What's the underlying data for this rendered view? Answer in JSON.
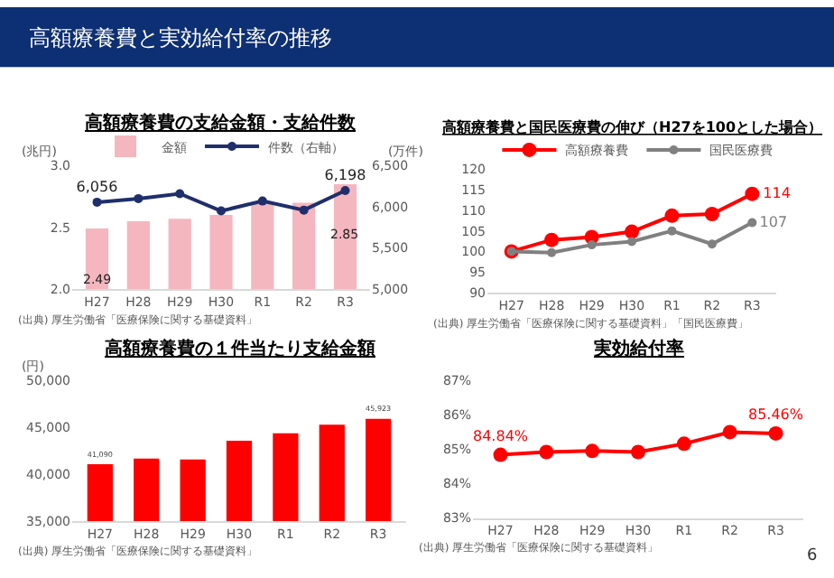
{
  "chart_data": [
    {
      "type": "other",
      "title": "高額療養費と実効給付率の推移",
      "annotations": [
        "6"
      ]
    },
    {
      "type": "bar",
      "title": "高額療養費の支給金額・支給件数",
      "ylabel": "(兆円)",
      "y2label": "(万件)",
      "categories": [
        "H27",
        "H28",
        "H29",
        "H30",
        "R1",
        "R2",
        "R3"
      ],
      "series": [
        {
          "name": "金額",
          "type": "bar",
          "color": "#f4b6bf",
          "values": [
            2.49,
            2.55,
            2.57,
            2.6,
            2.7,
            2.7,
            2.85
          ],
          "value_labels": [
            "2.49",
            null,
            null,
            null,
            null,
            null,
            "2.85"
          ]
        },
        {
          "name": "件数（右軸）",
          "type": "line",
          "axis": "y2",
          "color": "#1f2f6b",
          "values": [
            6056,
            6100,
            6160,
            5950,
            6070,
            5960,
            6198
          ],
          "value_labels": [
            "6,056",
            null,
            null,
            null,
            null,
            null,
            "6,198"
          ]
        }
      ],
      "ylim": [
        2,
        3
      ],
      "yticks": [
        {
          "value": 2,
          "label": "2.0"
        },
        2.5,
        {
          "value": 3,
          "label": "3.0"
        }
      ],
      "y2lim": [
        5000,
        6500
      ],
      "y2ticks": [
        {
          "value": 5000,
          "label": "5,000"
        },
        {
          "value": 5500,
          "label": "5,500"
        },
        {
          "value": 6000,
          "label": "6,000"
        },
        {
          "value": 6500,
          "label": "6,500"
        }
      ],
      "marker": "circle",
      "legend": "top",
      "annotations": [
        "(出典) 厚生労働省「医療保険に関する基礎資料」"
      ]
    },
    {
      "type": "line",
      "title": "高額療養費と国民医療費の伸び（H27を100とした場合）",
      "categories": [
        "H27",
        "H28",
        "H29",
        "H30",
        "R1",
        "R2",
        "R3"
      ],
      "series": [
        {
          "name": "高額療養費",
          "color": "#ff0000",
          "values": [
            100,
            102.8,
            103.5,
            104.8,
            108.7,
            109.1,
            114
          ],
          "value_labels": [
            null,
            null,
            null,
            null,
            null,
            null,
            "114"
          ]
        },
        {
          "name": "国民医療費",
          "color": "#808080",
          "values": [
            100,
            99.7,
            101.6,
            102.4,
            105,
            101.8,
            107
          ],
          "value_labels": [
            null,
            null,
            null,
            null,
            null,
            null,
            "107"
          ]
        }
      ],
      "ylim": [
        90,
        120
      ],
      "yticks": [
        90,
        95,
        100,
        105,
        110,
        115,
        120
      ],
      "marker": "circle",
      "legend": "top left",
      "annotations": [
        "(出典) 厚生労働省「医療保険に関する基礎資料」「国民医療費」"
      ]
    },
    {
      "type": "bar",
      "title": "高額療養費の１件当たり支給金額",
      "ylabel": "(円)",
      "categories": [
        "H27",
        "H28",
        "H29",
        "H30",
        "R1",
        "R2",
        "R3"
      ],
      "series": [
        {
          "color": "#ff0000",
          "values": [
            41090,
            41700,
            41600,
            43600,
            44400,
            45300,
            45923
          ],
          "value_labels": [
            "41,090",
            null,
            null,
            null,
            null,
            null,
            "45,923"
          ]
        }
      ],
      "ylim": [
        35000,
        50000
      ],
      "yticks": [
        {
          "value": 35000,
          "label": "35,000"
        },
        {
          "value": 40000,
          "label": "40,000"
        },
        {
          "value": 45000,
          "label": "45,000"
        },
        {
          "value": 50000,
          "label": "50,000"
        }
      ],
      "annotations": [
        "(出典) 厚生労働省「医療保険に関する基礎資料」"
      ]
    },
    {
      "type": "line",
      "title": "実効給付率",
      "categories": [
        "H27",
        "H28",
        "H29",
        "H30",
        "R1",
        "R2",
        "R3"
      ],
      "series": [
        {
          "color": "#ff0000",
          "values": [
            84.84,
            84.92,
            84.95,
            84.92,
            85.16,
            85.5,
            85.46
          ],
          "value_labels": [
            "84.84%",
            null,
            null,
            null,
            null,
            null,
            "85.46%"
          ]
        }
      ],
      "ylim": [
        83,
        87
      ],
      "yticks": [
        {
          "value": 83,
          "label": "83%"
        },
        {
          "value": 84,
          "label": "84%"
        },
        {
          "value": 85,
          "label": "85%"
        },
        {
          "value": 86,
          "label": "86%"
        },
        {
          "value": 87,
          "label": "87%"
        }
      ],
      "marker": "circle",
      "annotations": [
        "(出典) 厚生労働省「医療保険に関する基礎資料」"
      ]
    }
  ]
}
